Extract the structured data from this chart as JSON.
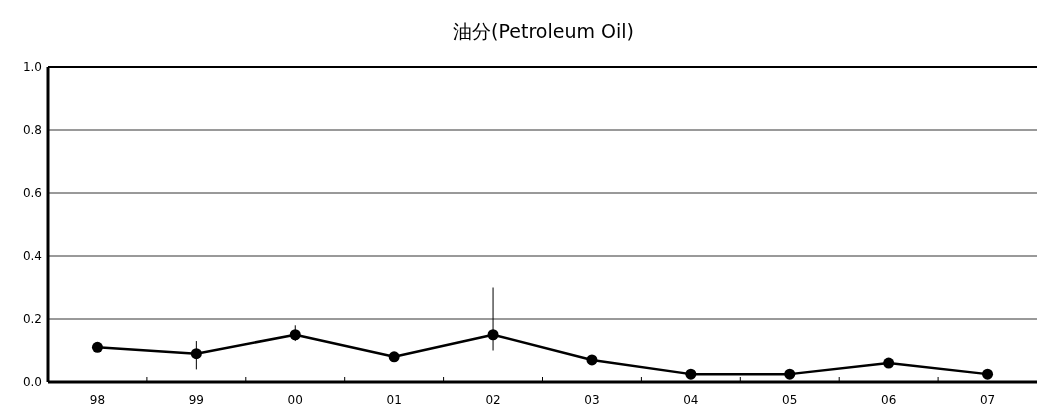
{
  "chart_data": {
    "type": "line",
    "title": "油分(Petroleum Oil)",
    "categories": [
      "98",
      "99",
      "00",
      "01",
      "02",
      "03",
      "04",
      "05",
      "06",
      "07"
    ],
    "series": [
      {
        "color": "#000000",
        "values": [
          0.11,
          0.09,
          0.15,
          0.08,
          0.15,
          0.07,
          0.025,
          0.025,
          0.06,
          0.025
        ],
        "errors": [
          [
            0.1,
            0.12
          ],
          [
            0.04,
            0.13
          ],
          [
            0.13,
            0.18
          ],
          [
            0.07,
            0.09
          ],
          [
            0.1,
            0.3
          ],
          [
            0.06,
            0.08
          ],
          null,
          null,
          null,
          null
        ]
      }
    ],
    "ylim": [
      0,
      1
    ],
    "yticks": [
      {
        "value": 0,
        "label": "0.0"
      },
      {
        "value": 0.2,
        "label": "0.2"
      },
      {
        "value": 0.4,
        "label": "0.4"
      },
      {
        "value": 0.6,
        "label": "0.6"
      },
      {
        "value": 0.8,
        "label": "0.8"
      },
      {
        "value": 1,
        "label": "1.0"
      }
    ],
    "grid": "y",
    "marker": "circle",
    "line_style": "solid"
  }
}
